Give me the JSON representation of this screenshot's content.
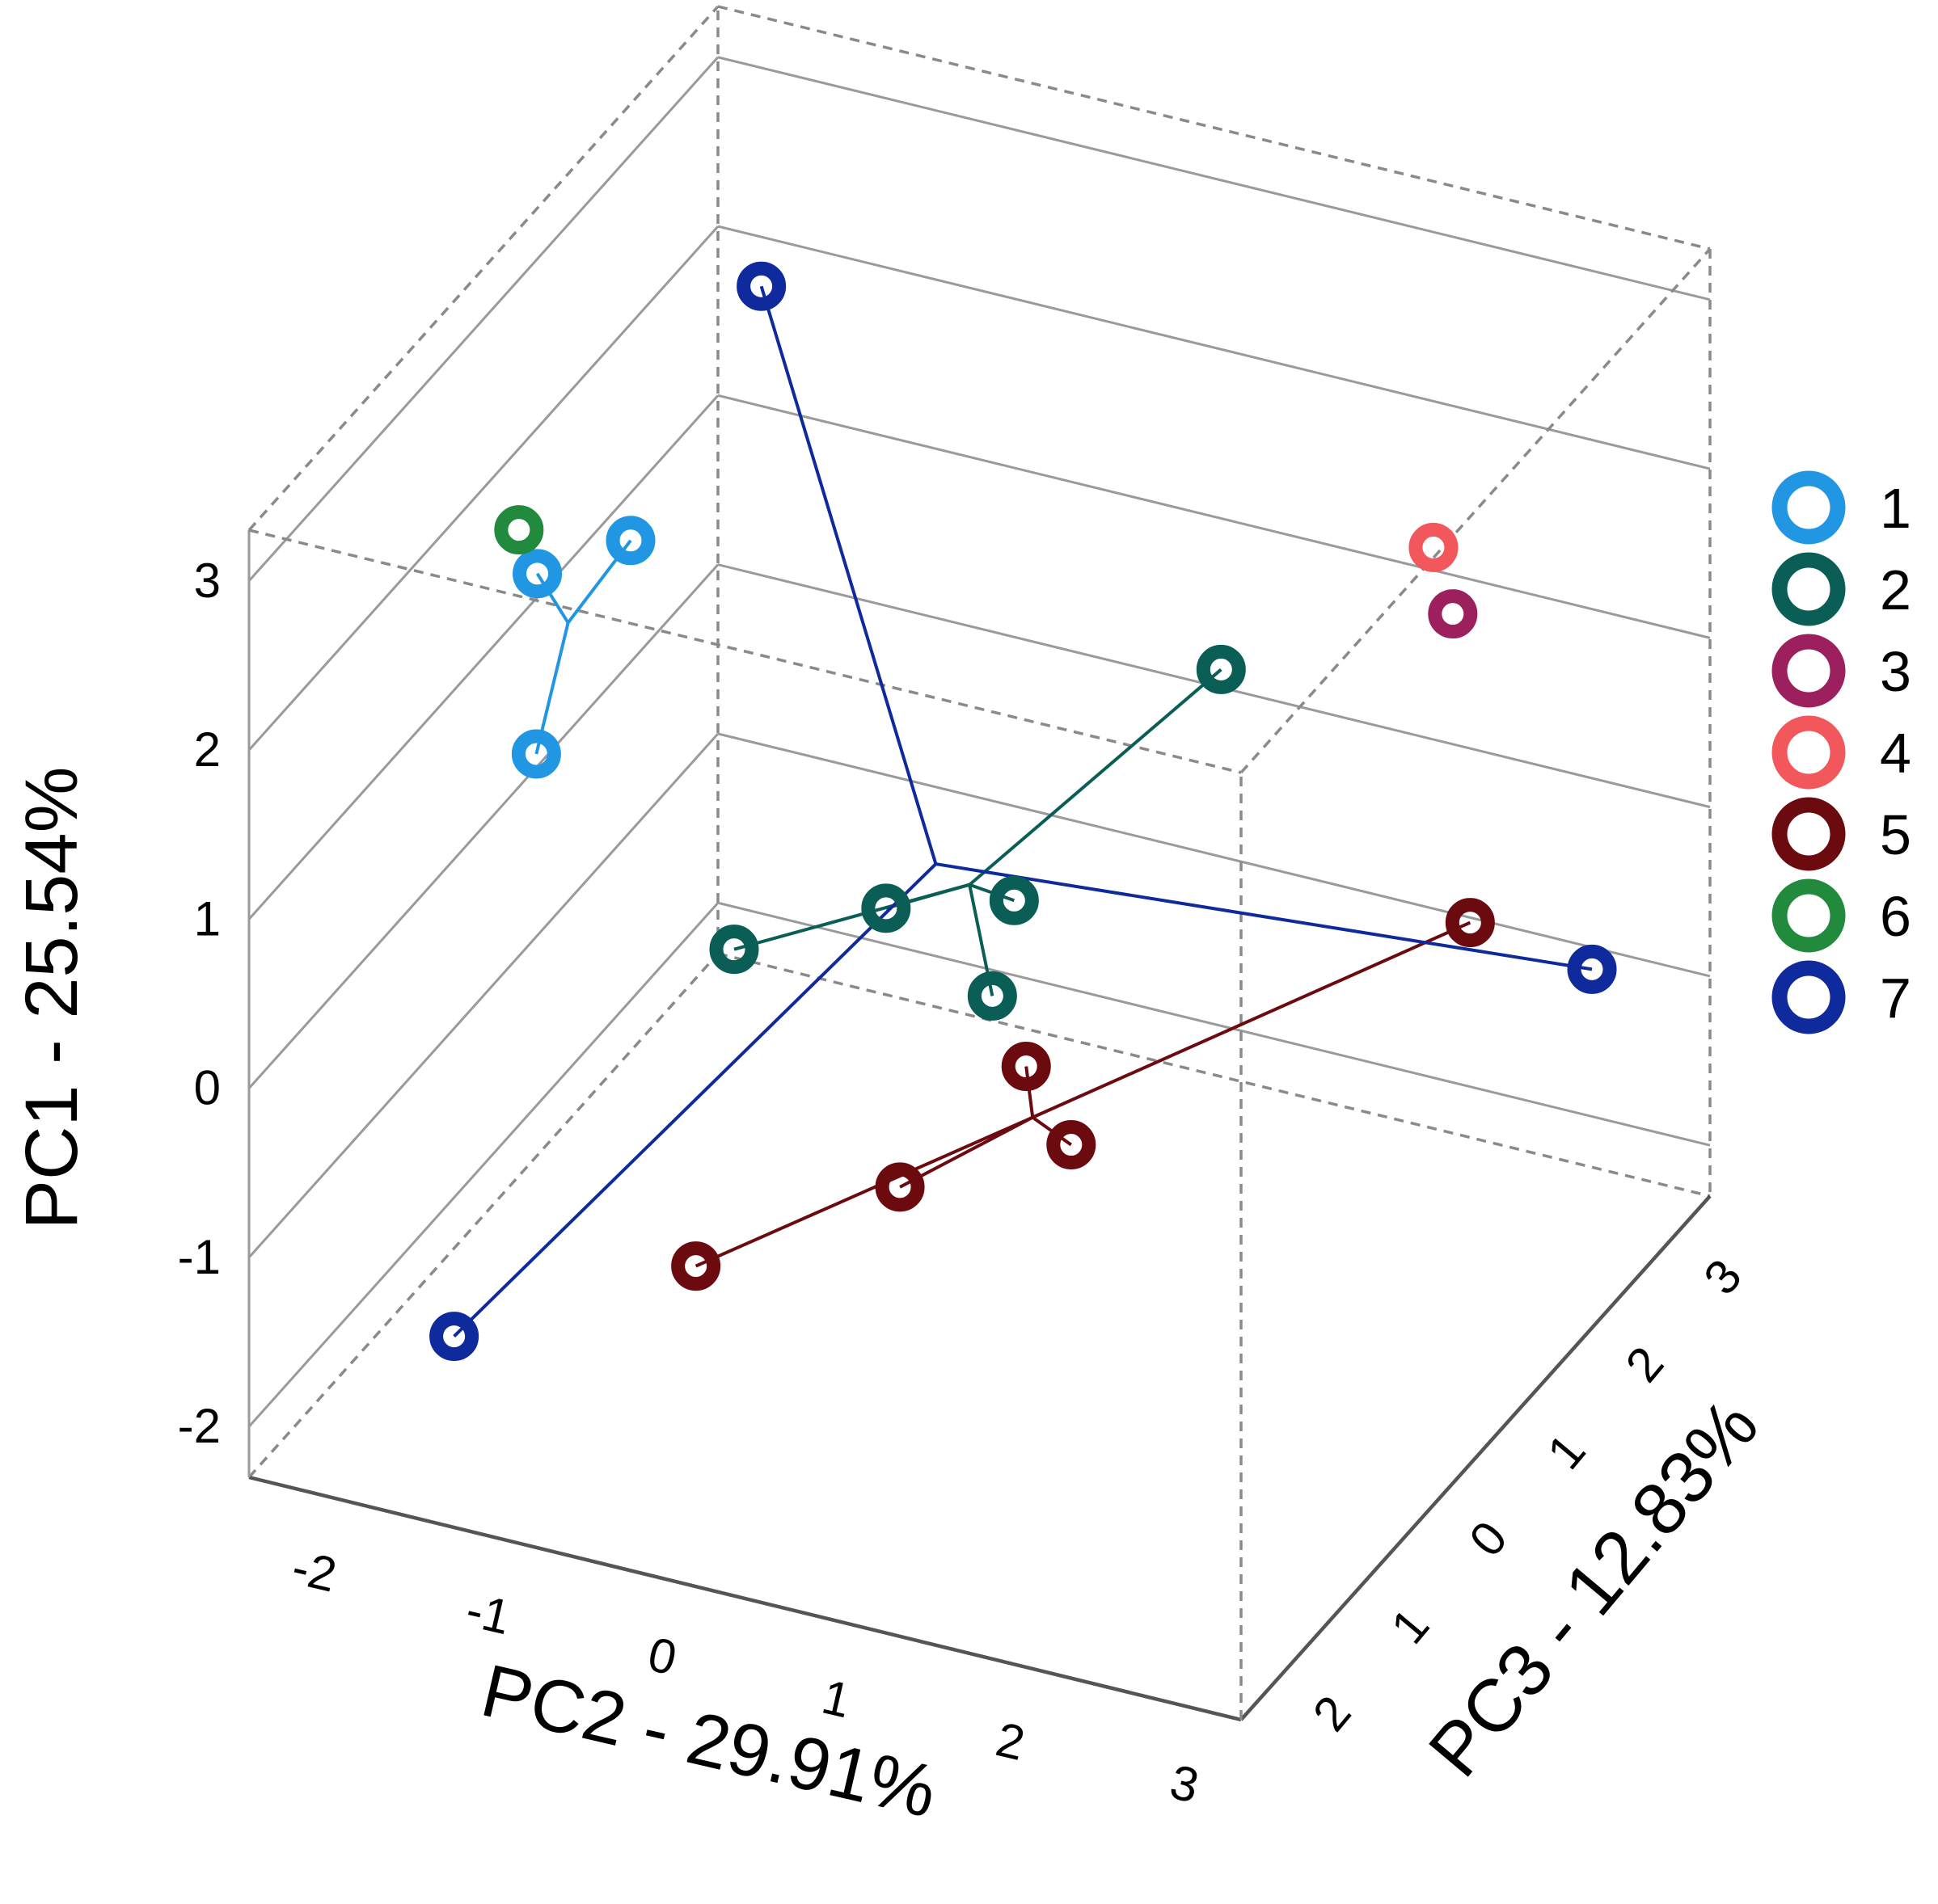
{
  "chart_data": {
    "type": "scatter3d",
    "axes": {
      "pc1": {
        "label": "PC1 - 25.54%",
        "ticks": [
          "-2",
          "-1",
          "0",
          "1",
          "2",
          "3"
        ],
        "range": [
          -2.3,
          3.3
        ]
      },
      "pc2": {
        "label": "PC2 - 29.91%",
        "ticks": [
          "-2",
          "-1",
          "0",
          "1",
          "2",
          "3"
        ],
        "range": [
          -2.4,
          3.3
        ]
      },
      "pc3": {
        "label": "PC3 - 12.83%",
        "ticks": [
          "2",
          "1",
          "0",
          "1",
          "2",
          "3"
        ],
        "range": [
          -2.4,
          3.3
        ]
      }
    },
    "legend": [
      {
        "label": "1",
        "color": "#2196e3"
      },
      {
        "label": "2",
        "color": "#0b5e55"
      },
      {
        "label": "3",
        "color": "#9c1f5e"
      },
      {
        "label": "4",
        "color": "#f2575b"
      },
      {
        "label": "5",
        "color": "#6b0a0f"
      },
      {
        "label": "6",
        "color": "#218a3c"
      },
      {
        "label": "7",
        "color": "#0e2a9c"
      }
    ],
    "series": [
      {
        "name": "1",
        "points": [
          {
            "pc1": 2.4,
            "pc2": -1.5,
            "pc3": 1.7
          },
          {
            "pc1": 2.4,
            "pc2": -1.2,
            "pc3": 1.2
          },
          {
            "pc1": 1.2,
            "pc2": -1.6,
            "pc3": 1.5
          }
        ],
        "lines_to_centroid": true
      },
      {
        "name": "2",
        "points": [
          {
            "pc1": 1.1,
            "pc2": 1.2,
            "pc3": -0.9
          },
          {
            "pc1": -0.2,
            "pc2": -0.3,
            "pc3": 0.0
          },
          {
            "pc1": -0.3,
            "pc2": 0.5,
            "pc3": 0.4
          },
          {
            "pc1": 0.0,
            "pc2": -0.7,
            "pc3": 1.0
          },
          {
            "pc1": -0.3,
            "pc2": 0.2,
            "pc3": -0.5
          }
        ],
        "lines_to_centroid": true
      },
      {
        "name": "3",
        "points": [
          {
            "pc1": 1.3,
            "pc2": 2.2,
            "pc3": -1.6
          }
        ],
        "lines_to_centroid": false
      },
      {
        "name": "4",
        "points": [
          {
            "pc1": 1.4,
            "pc2": 1.9,
            "pc3": -2.0
          }
        ],
        "lines_to_centroid": false
      },
      {
        "name": "5",
        "points": [
          {
            "pc1": -0.8,
            "pc2": 0.6,
            "pc3": 0.2
          },
          {
            "pc1": -1.1,
            "pc2": 0.3,
            "pc3": 1.1
          },
          {
            "pc1": -1.0,
            "pc2": 1.0,
            "pc3": 0.5
          },
          {
            "pc1": -1.2,
            "pc2": -0.4,
            "pc3": 2.1
          },
          {
            "pc1": -0.5,
            "pc2": 2.3,
            "pc3": -1.6
          }
        ],
        "lines_to_centroid": true
      },
      {
        "name": "6",
        "points": [
          {
            "pc1": 2.5,
            "pc2": -1.7,
            "pc3": 1.5
          }
        ],
        "lines_to_centroid": false
      },
      {
        "name": "7",
        "points": [
          {
            "pc1": 2.9,
            "pc2": -1.3,
            "pc3": -0.6
          },
          {
            "pc1": -0.6,
            "pc2": 3.0,
            "pc3": -1.6
          },
          {
            "pc1": -1.7,
            "pc2": -1.6,
            "pc3": 2.5
          }
        ],
        "lines_to_centroid": true
      }
    ]
  }
}
